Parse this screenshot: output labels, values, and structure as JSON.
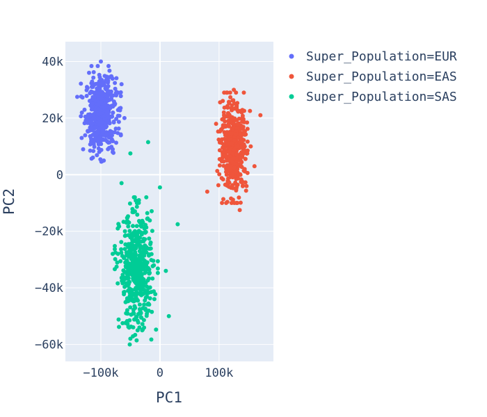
{
  "chart_data": {
    "type": "scatter",
    "xlabel": "PC1",
    "ylabel": "PC2",
    "xlim": [
      -160000,
      192000
    ],
    "ylim": [
      -66000,
      47000
    ],
    "x_ticks": [
      -100000,
      0,
      100000
    ],
    "x_tick_labels": [
      "−100k",
      "0",
      "100k"
    ],
    "y_ticks": [
      40000,
      20000,
      0,
      -20000,
      -40000,
      -60000
    ],
    "y_tick_labels": [
      "40k",
      "20k",
      "0",
      "−20k",
      "−40k",
      "−60k"
    ],
    "grid": true,
    "plot_bgcolor": "#e5ecf6",
    "legend_position": "top-right",
    "series": [
      {
        "name": "Super_Population=EUR",
        "color": "#636efa",
        "center": [
          -100000,
          21500
        ],
        "spread": [
          13000,
          6500
        ],
        "count": 500,
        "extra_points": [
          [
            -140000,
            27500
          ],
          [
            -100000,
            40000
          ],
          [
            -65000,
            32000
          ],
          [
            -130000,
            9000
          ],
          [
            -95000,
            5000
          ],
          [
            -80000,
            8000
          ],
          [
            -60000,
            20000
          ],
          [
            -120000,
            36000
          ]
        ]
      },
      {
        "name": "Super_Population=EAS",
        "color": "#ef553b",
        "center": [
          125000,
          9500
        ],
        "spread": [
          11000,
          7500
        ],
        "count": 500,
        "extra_points": [
          [
            80000,
            -6000
          ],
          [
            135000,
            -12500
          ],
          [
            142000,
            29000
          ],
          [
            170000,
            21000
          ],
          [
            95000,
            18000
          ],
          [
            160000,
            3000
          ],
          [
            105000,
            -10000
          ],
          [
            125000,
            30000
          ]
        ]
      },
      {
        "name": "Super_Population=SAS",
        "color": "#00cc96",
        "center": [
          -40000,
          -34000
        ],
        "spread": [
          14000,
          10000
        ],
        "count": 500,
        "extra_points": [
          [
            -50000,
            7500
          ],
          [
            -20000,
            11500
          ],
          [
            -65000,
            -3000
          ],
          [
            0,
            -4500
          ],
          [
            30000,
            -17500
          ],
          [
            -50000,
            -58000
          ],
          [
            -30000,
            -55000
          ],
          [
            15000,
            -50000
          ],
          [
            -80000,
            -28000
          ],
          [
            10000,
            -34000
          ]
        ]
      }
    ]
  }
}
